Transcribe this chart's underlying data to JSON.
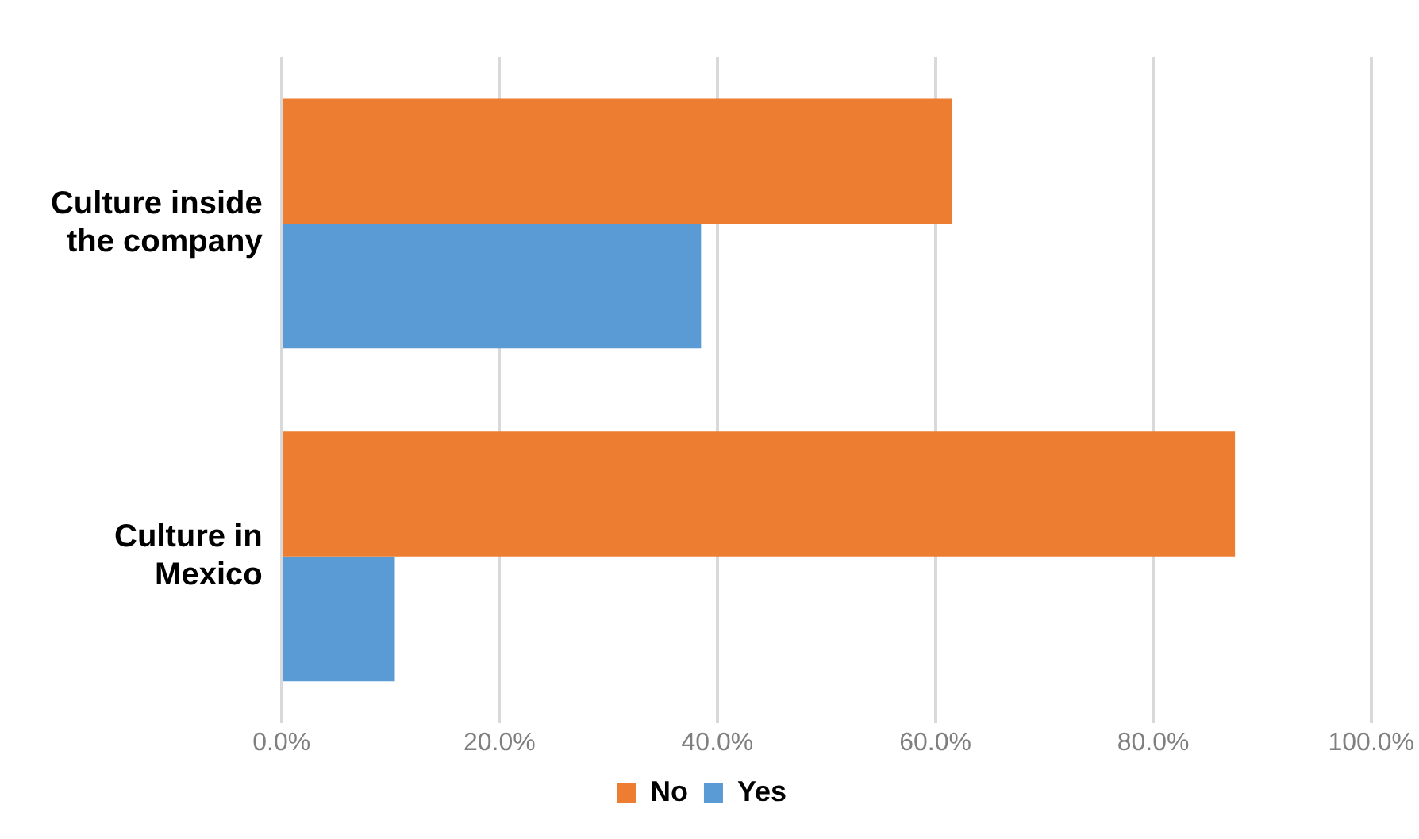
{
  "chart_data": {
    "type": "bar",
    "orientation": "horizontal",
    "categories": [
      "Culture inside the company",
      "Culture in Mexico"
    ],
    "series": [
      {
        "name": "No",
        "color": "#ed7d31",
        "values": [
          61.5,
          87.5
        ]
      },
      {
        "name": "Yes",
        "color": "#5b9bd5",
        "values": [
          38.5,
          10.4
        ]
      }
    ],
    "xlim": [
      0,
      100
    ],
    "xticks": [
      {
        "value": 0,
        "label": "0.0%"
      },
      {
        "value": 20,
        "label": "20.0%"
      },
      {
        "value": 40,
        "label": "40.0%"
      },
      {
        "value": 60,
        "label": "60.0%"
      },
      {
        "value": 80,
        "label": "80.0%"
      },
      {
        "value": 100,
        "label": "100.0%"
      }
    ],
    "grid": "x",
    "legend": "bottom"
  }
}
